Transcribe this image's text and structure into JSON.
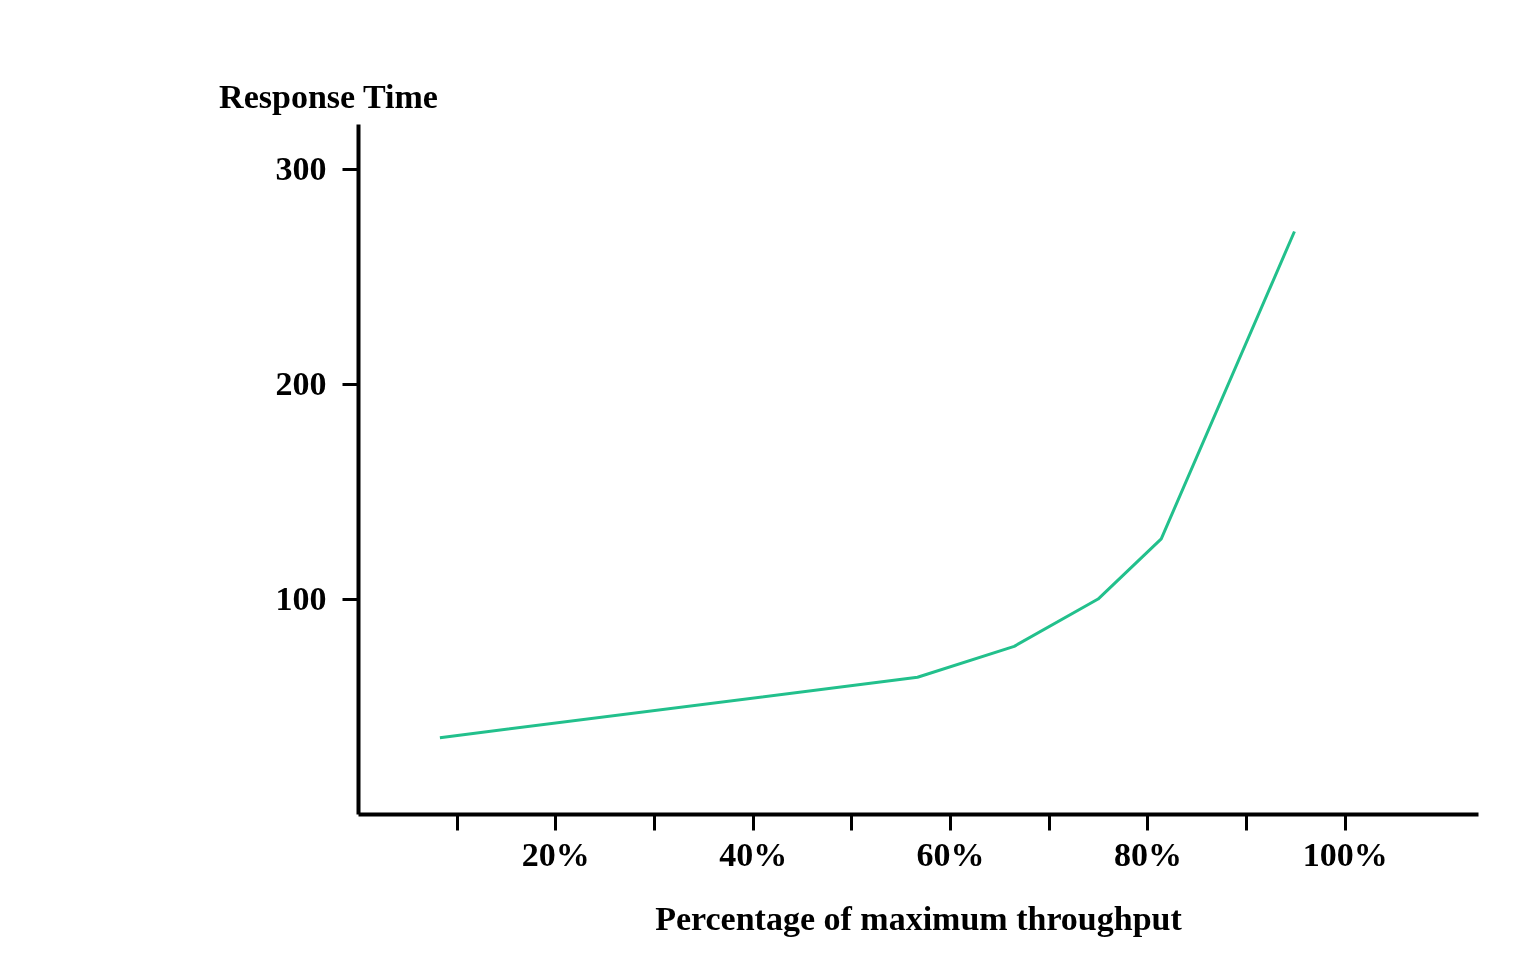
{
  "chart_data": {
    "type": "line",
    "xlabel": "Percentage of maximum throughput",
    "ylabel": "Response Time",
    "x": [
      8.3,
      56.7,
      66.5,
      75,
      81.4,
      94.9
    ],
    "series": [
      {
        "color": "#22c08c",
        "values": [
          35.5,
          63.6,
          78,
          100,
          128,
          271
        ]
      }
    ],
    "xlim": [
      0,
      113.5
    ],
    "ylim": [
      0,
      321
    ],
    "xticks": [
      {
        "value": 10,
        "label": null
      },
      {
        "value": 20,
        "label": "20%"
      },
      {
        "value": 30,
        "label": null
      },
      {
        "value": 40,
        "label": "40%"
      },
      {
        "value": 50,
        "label": null
      },
      {
        "value": 60,
        "label": "60%"
      },
      {
        "value": 70,
        "label": null
      },
      {
        "value": 80,
        "label": "80%"
      },
      {
        "value": 90,
        "label": null
      },
      {
        "value": 100,
        "label": "100%"
      }
    ],
    "yticks": [
      100,
      200,
      300
    ],
    "grid": false,
    "marker": "none",
    "line_style": "solid"
  }
}
